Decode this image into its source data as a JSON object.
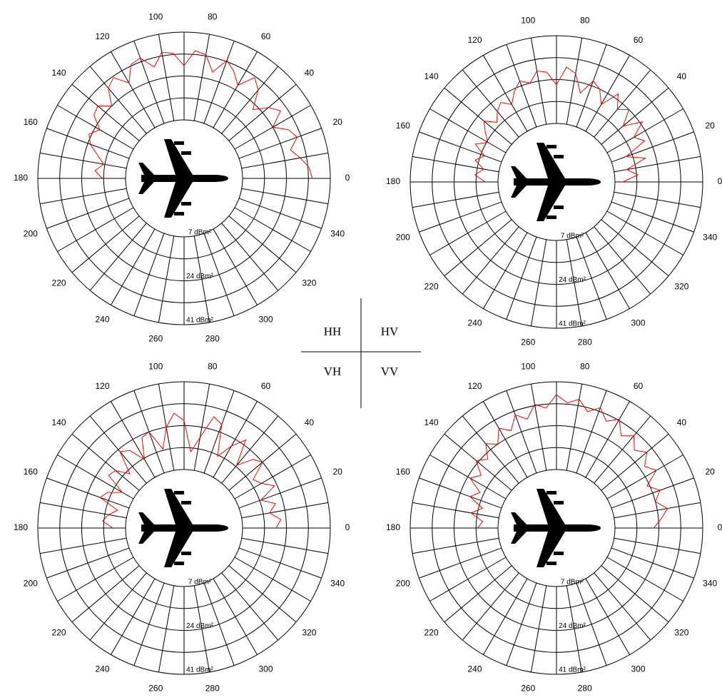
{
  "polar_axes": {
    "angular_ticks": [
      0,
      20,
      40,
      60,
      80,
      100,
      120,
      140,
      160,
      180,
      200,
      220,
      240,
      260,
      280,
      300,
      320,
      340
    ],
    "spoke_step": 10,
    "rlim": [
      7,
      41
    ],
    "radial_grid": [
      7,
      15.5,
      24,
      32.5,
      41
    ],
    "radial_ticks": [
      {
        "value": 7,
        "label": "7 dBm²"
      },
      {
        "value": 24,
        "label": "24 dBm²"
      },
      {
        "value": 41,
        "label": "41 dBm²"
      }
    ]
  },
  "theta": [
    0,
    5,
    10,
    15,
    20,
    25,
    30,
    35,
    40,
    45,
    50,
    55,
    60,
    65,
    70,
    75,
    80,
    85,
    90,
    95,
    100,
    105,
    110,
    115,
    120,
    125,
    130,
    135,
    140,
    145,
    150,
    155,
    160,
    165,
    170,
    175,
    180
  ],
  "chart_data": [
    {
      "type": "polar",
      "name": "HH",
      "color": "#ff0000",
      "values": [
        34,
        33,
        30,
        27,
        31,
        29,
        24,
        30,
        27,
        22,
        29,
        32,
        26,
        30,
        33,
        27,
        33,
        34,
        28,
        33,
        34,
        29,
        34,
        33,
        27,
        32,
        30,
        24,
        28,
        27,
        22,
        25,
        23,
        19,
        16,
        19,
        16
      ]
    },
    {
      "type": "polar",
      "name": "HV",
      "color": "#ff0000",
      "values": [
        10,
        16,
        12,
        20,
        13,
        22,
        19,
        25,
        18,
        24,
        21,
        26,
        19,
        24,
        26,
        20,
        27,
        29,
        22,
        27,
        28,
        24,
        26,
        23,
        19,
        22,
        20,
        17,
        21,
        18,
        15,
        19,
        14,
        17,
        13,
        16,
        12
      ]
    },
    {
      "type": "polar",
      "name": "VH",
      "color": "#ff0000",
      "values": [
        20,
        22,
        18,
        21,
        16,
        23,
        19,
        17,
        24,
        22,
        16,
        26,
        21,
        15,
        27,
        29,
        20,
        14,
        26,
        29,
        24,
        16,
        24,
        23,
        15,
        21,
        23,
        14,
        19,
        20,
        12,
        17,
        19,
        11,
        14,
        16,
        12
      ]
    },
    {
      "type": "polar",
      "name": "VV",
      "color": "#ff0000",
      "values": [
        22,
        25,
        28,
        24,
        27,
        23,
        29,
        26,
        30,
        27,
        31,
        28,
        33,
        30,
        34,
        31,
        35,
        33,
        36,
        31,
        33,
        28,
        31,
        26,
        29,
        24,
        27,
        22,
        25,
        20,
        23,
        17,
        20,
        14,
        18,
        13,
        15
      ]
    }
  ]
}
